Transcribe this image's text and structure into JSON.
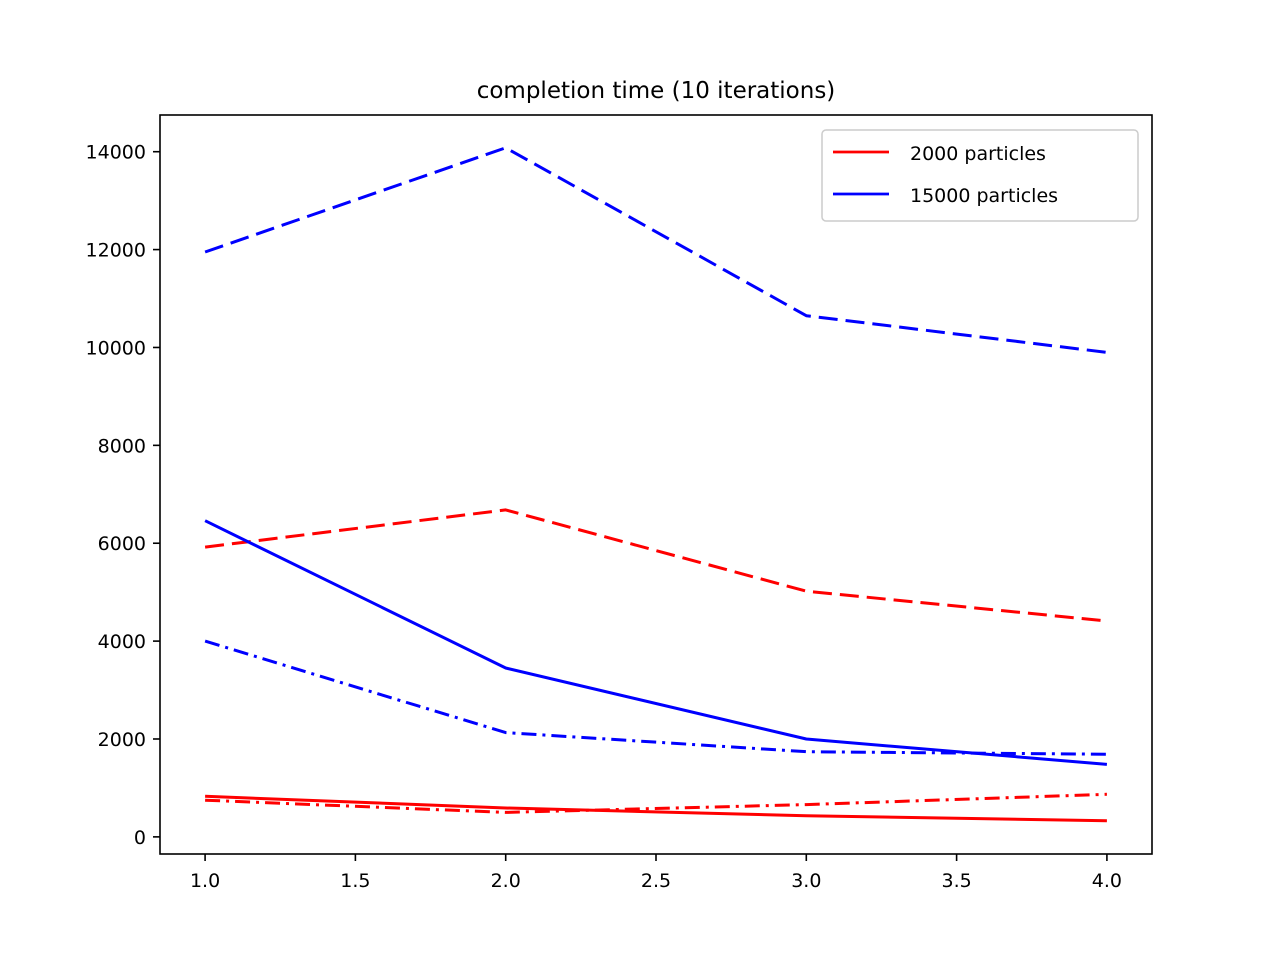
{
  "chart_data": {
    "type": "line",
    "title": "completion time (10 iterations)",
    "xlabel": "",
    "ylabel": "",
    "xlim": [
      0.85,
      4.15
    ],
    "ylim": [
      -350,
      14750
    ],
    "x_ticks": [
      1.0,
      1.5,
      2.0,
      2.5,
      3.0,
      3.5,
      4.0
    ],
    "x_tick_labels": [
      "1.0",
      "1.5",
      "2.0",
      "2.5",
      "3.0",
      "3.5",
      "4.0"
    ],
    "y_ticks": [
      0,
      2000,
      4000,
      6000,
      8000,
      10000,
      12000,
      14000
    ],
    "y_tick_labels": [
      "0",
      "2000",
      "4000",
      "6000",
      "8000",
      "10000",
      "12000",
      "14000"
    ],
    "grid": false,
    "legend_position": "top-right",
    "legend": [
      {
        "label": "2000 particles",
        "color": "#ff0000"
      },
      {
        "label": "15000 particles",
        "color": "#0000ff"
      }
    ],
    "x": [
      1,
      2,
      3,
      4
    ],
    "series": [
      {
        "color": "#ff0000",
        "style": "dashed",
        "values": [
          5920,
          6680,
          5020,
          4410
        ]
      },
      {
        "color": "#ff0000",
        "style": "solid",
        "values": [
          830,
          590,
          430,
          330
        ]
      },
      {
        "color": "#ff0000",
        "style": "dashdot",
        "values": [
          750,
          500,
          660,
          870
        ]
      },
      {
        "color": "#0000ff",
        "style": "dashed",
        "values": [
          11950,
          14080,
          10650,
          9900
        ]
      },
      {
        "color": "#0000ff",
        "style": "solid",
        "values": [
          6460,
          3450,
          2000,
          1480
        ]
      },
      {
        "color": "#0000ff",
        "style": "dashdot",
        "values": [
          4000,
          2130,
          1740,
          1690
        ]
      }
    ]
  }
}
